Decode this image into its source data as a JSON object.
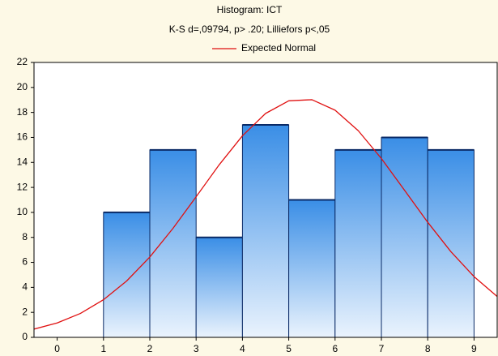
{
  "chart_data": {
    "type": "histogram",
    "title": "Histogram: ICT",
    "subtitle": "K-S d=,09794, p> .20; Lilliefors p<,05",
    "bins": [
      1,
      2,
      3,
      4,
      5,
      6,
      7,
      8,
      9
    ],
    "counts": [
      10,
      15,
      8,
      17,
      11,
      15,
      16,
      15
    ],
    "color": "#3a8ee6",
    "series": [
      {
        "name": "Expected Normal",
        "color": "#e01010",
        "x": [
          -0.5,
          0,
          0.5,
          1,
          1.5,
          2,
          2.5,
          3,
          3.5,
          4,
          4.5,
          5,
          5.5,
          6,
          6.5,
          7,
          7.5,
          8,
          8.5,
          9,
          9.5
        ],
        "values": [
          0.66,
          1.15,
          1.91,
          3.01,
          4.51,
          6.43,
          8.72,
          11.25,
          13.82,
          16.13,
          17.92,
          18.93,
          19.02,
          18.18,
          16.54,
          14.31,
          11.77,
          9.21,
          6.86,
          4.86,
          3.27
        ]
      }
    ],
    "xlim": [
      -0.5,
      9.5
    ],
    "xticks": [
      0,
      1,
      2,
      3,
      4,
      5,
      6,
      7,
      8,
      9
    ],
    "ylim": [
      0,
      22
    ],
    "yticks": [
      0,
      2,
      4,
      6,
      8,
      10,
      12,
      14,
      16,
      18,
      20,
      22
    ],
    "legend": "top"
  }
}
